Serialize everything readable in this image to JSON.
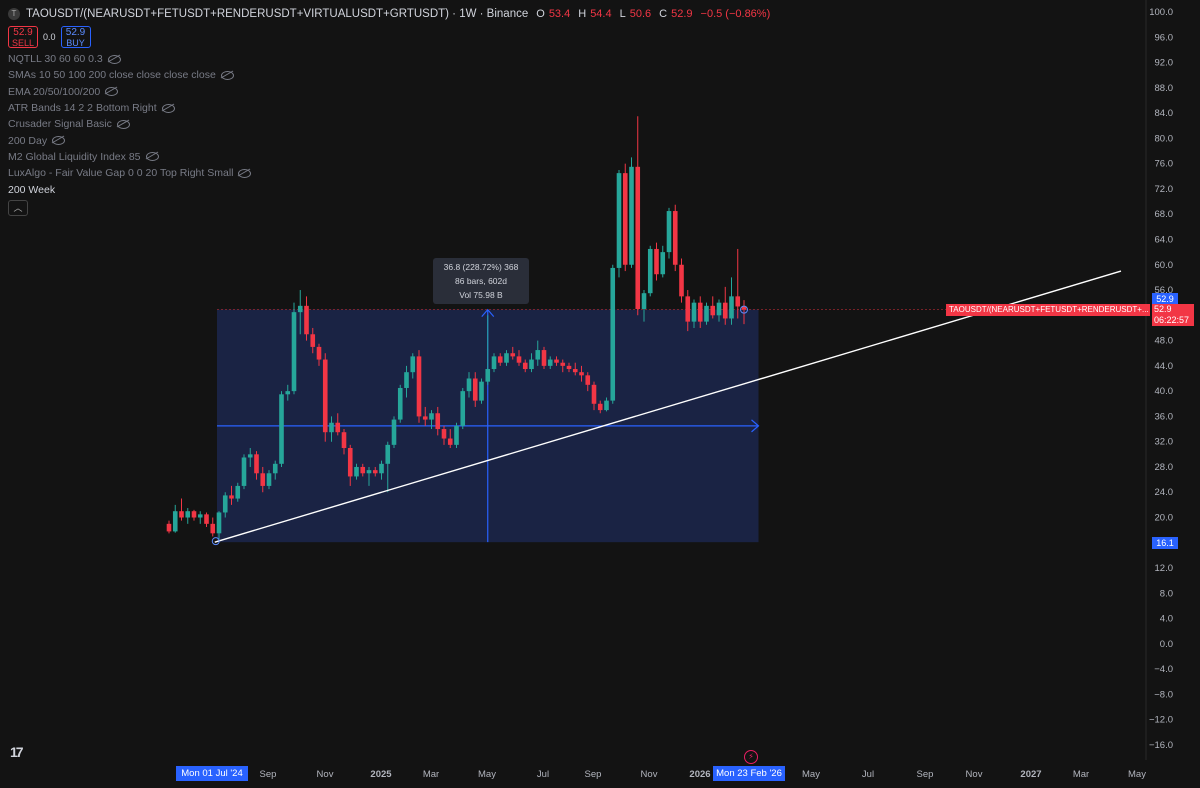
{
  "header": {
    "symbol_icon": "T",
    "title": "TAOUSDT/(NEARUSDT+FETUSDT+RENDERUSDT+VIRTUALUSDT+GRTUSDT) · 1W · Binance",
    "ohlc": [
      {
        "label": "O",
        "value": "53.4"
      },
      {
        "label": "H",
        "value": "54.4"
      },
      {
        "label": "L",
        "value": "50.6"
      },
      {
        "label": "C",
        "value": "52.9"
      }
    ],
    "change": "−0.5 (−0.86%)"
  },
  "trade": {
    "sell_value": "52.9",
    "sell_label": "SELL",
    "spread": "0.0",
    "buy_value": "52.9",
    "buy_label": "BUY"
  },
  "indicators": [
    "NQTLL 30 60 60 0.3",
    "SMAs 10 50 100 200 close close close close",
    "EMA 20/50/100/200",
    "ATR Bands 14 2 2 Bottom Right",
    "Crusader Signal Basic",
    "200 Day",
    "M2 Global Liquidity Index 85",
    "LuxAlgo - Fair Value Gap 0 0 20 Top Right Small",
    "200 Week"
  ],
  "collapse_icon": "chevron-up-icon",
  "logo": "17",
  "measure": {
    "line1": "36.8 (228.72%) 368",
    "line2": "86 bars, 602d",
    "line3": "Vol 75.98 B"
  },
  "price_label": {
    "symbol": "TAOUSDT/(NEARUSDT+FETUSDT+RENDERUSDT+...",
    "last": "52.9",
    "countdown": "06:22:57",
    "top_tag": "52.9",
    "bottom_tag": "16.1"
  },
  "yaxis_labels": [
    "100.0",
    "96.0",
    "92.0",
    "88.0",
    "84.0",
    "80.0",
    "76.0",
    "72.0",
    "68.0",
    "64.0",
    "60.0",
    "56.0",
    "52.0",
    "48.0",
    "44.0",
    "40.0",
    "36.0",
    "32.0",
    "28.0",
    "24.0",
    "20.0",
    "16.0",
    "12.0",
    "8.0",
    "4.0",
    "0.0",
    "−4.0",
    "−8.0",
    "−12.0",
    "−16.0"
  ],
  "xaxis": {
    "ticks": [
      "Sep",
      "Nov",
      "2025",
      "Mar",
      "May",
      "Jul",
      "Sep",
      "Nov",
      "2026",
      "May",
      "Jul",
      "Sep",
      "Nov",
      "2027",
      "Mar",
      "May"
    ],
    "start_tag": "Mon 01 Jul '24",
    "end_tag": "Mon 23 Feb '26"
  },
  "colors": {
    "up": "#26a69a",
    "down": "#f23645",
    "measure_fill": "#1e2a55",
    "measure_line": "#2962ff",
    "trendline": "#ffffff"
  },
  "chart_data": {
    "type": "candlestick",
    "timeframe": "1W",
    "ylim": [
      -16,
      100
    ],
    "candles": [
      {
        "o": 19.0,
        "h": 19.5,
        "l": 17.5,
        "c": 17.8
      },
      {
        "o": 17.8,
        "h": 22.0,
        "l": 17.6,
        "c": 21.0
      },
      {
        "o": 21.0,
        "h": 23.0,
        "l": 19.5,
        "c": 20.0
      },
      {
        "o": 20.0,
        "h": 21.5,
        "l": 19.0,
        "c": 21.0
      },
      {
        "o": 21.0,
        "h": 21.2,
        "l": 19.5,
        "c": 20.0
      },
      {
        "o": 20.0,
        "h": 21.0,
        "l": 19.0,
        "c": 20.5
      },
      {
        "o": 20.5,
        "h": 20.8,
        "l": 18.5,
        "c": 19.0
      },
      {
        "o": 19.0,
        "h": 20.0,
        "l": 17.0,
        "c": 17.5
      },
      {
        "o": 17.5,
        "h": 21.0,
        "l": 16.1,
        "c": 20.8
      },
      {
        "o": 20.8,
        "h": 24.0,
        "l": 20.0,
        "c": 23.5
      },
      {
        "o": 23.5,
        "h": 25.0,
        "l": 22.0,
        "c": 23.0
      },
      {
        "o": 23.0,
        "h": 25.5,
        "l": 22.5,
        "c": 25.0
      },
      {
        "o": 25.0,
        "h": 30.0,
        "l": 24.5,
        "c": 29.5
      },
      {
        "o": 29.5,
        "h": 31.0,
        "l": 28.0,
        "c": 30.0
      },
      {
        "o": 30.0,
        "h": 30.5,
        "l": 26.0,
        "c": 27.0
      },
      {
        "o": 27.0,
        "h": 28.0,
        "l": 24.0,
        "c": 25.0
      },
      {
        "o": 25.0,
        "h": 27.5,
        "l": 24.5,
        "c": 27.0
      },
      {
        "o": 27.0,
        "h": 29.0,
        "l": 26.0,
        "c": 28.5
      },
      {
        "o": 28.5,
        "h": 40.0,
        "l": 28.0,
        "c": 39.5
      },
      {
        "o": 39.5,
        "h": 41.0,
        "l": 38.5,
        "c": 40.0
      },
      {
        "o": 40.0,
        "h": 54.0,
        "l": 39.5,
        "c": 52.5
      },
      {
        "o": 52.5,
        "h": 56.0,
        "l": 49.0,
        "c": 53.5
      },
      {
        "o": 53.5,
        "h": 55.0,
        "l": 48.0,
        "c": 49.0
      },
      {
        "o": 49.0,
        "h": 50.0,
        "l": 46.0,
        "c": 47.0
      },
      {
        "o": 47.0,
        "h": 47.5,
        "l": 44.0,
        "c": 45.0
      },
      {
        "o": 45.0,
        "h": 46.0,
        "l": 32.0,
        "c": 33.5
      },
      {
        "o": 33.5,
        "h": 36.0,
        "l": 32.0,
        "c": 35.0
      },
      {
        "o": 35.0,
        "h": 36.5,
        "l": 33.0,
        "c": 33.5
      },
      {
        "o": 33.5,
        "h": 34.0,
        "l": 30.0,
        "c": 31.0
      },
      {
        "o": 31.0,
        "h": 31.5,
        "l": 25.0,
        "c": 26.5
      },
      {
        "o": 26.5,
        "h": 28.5,
        "l": 26.0,
        "c": 28.0
      },
      {
        "o": 28.0,
        "h": 28.5,
        "l": 26.5,
        "c": 27.0
      },
      {
        "o": 27.0,
        "h": 28.0,
        "l": 25.0,
        "c": 27.5
      },
      {
        "o": 27.5,
        "h": 28.0,
        "l": 26.5,
        "c": 27.0
      },
      {
        "o": 27.0,
        "h": 29.0,
        "l": 26.0,
        "c": 28.5
      },
      {
        "o": 28.5,
        "h": 32.0,
        "l": 24.0,
        "c": 31.5
      },
      {
        "o": 31.5,
        "h": 36.0,
        "l": 31.0,
        "c": 35.5
      },
      {
        "o": 35.5,
        "h": 41.0,
        "l": 35.0,
        "c": 40.5
      },
      {
        "o": 40.5,
        "h": 44.0,
        "l": 39.0,
        "c": 43.0
      },
      {
        "o": 43.0,
        "h": 46.0,
        "l": 42.0,
        "c": 45.5
      },
      {
        "o": 45.5,
        "h": 46.5,
        "l": 35.0,
        "c": 36.0
      },
      {
        "o": 36.0,
        "h": 37.5,
        "l": 34.5,
        "c": 35.5
      },
      {
        "o": 35.5,
        "h": 37.0,
        "l": 34.0,
        "c": 36.5
      },
      {
        "o": 36.5,
        "h": 37.5,
        "l": 33.0,
        "c": 34.0
      },
      {
        "o": 34.0,
        "h": 34.5,
        "l": 31.5,
        "c": 32.5
      },
      {
        "o": 32.5,
        "h": 34.0,
        "l": 31.0,
        "c": 31.5
      },
      {
        "o": 31.5,
        "h": 35.0,
        "l": 31.0,
        "c": 34.5
      },
      {
        "o": 34.5,
        "h": 40.5,
        "l": 34.0,
        "c": 40.0
      },
      {
        "o": 40.0,
        "h": 43.0,
        "l": 39.0,
        "c": 42.0
      },
      {
        "o": 42.0,
        "h": 43.0,
        "l": 37.5,
        "c": 38.5
      },
      {
        "o": 38.5,
        "h": 42.0,
        "l": 38.0,
        "c": 41.5
      },
      {
        "o": 41.5,
        "h": 52.0,
        "l": 41.0,
        "c": 43.5
      },
      {
        "o": 43.5,
        "h": 46.0,
        "l": 43.0,
        "c": 45.5
      },
      {
        "o": 45.5,
        "h": 46.0,
        "l": 44.0,
        "c": 44.5
      },
      {
        "o": 44.5,
        "h": 46.5,
        "l": 44.0,
        "c": 46.0
      },
      {
        "o": 46.0,
        "h": 47.0,
        "l": 45.0,
        "c": 45.5
      },
      {
        "o": 45.5,
        "h": 46.5,
        "l": 44.0,
        "c": 44.5
      },
      {
        "o": 44.5,
        "h": 45.0,
        "l": 43.0,
        "c": 43.5
      },
      {
        "o": 43.5,
        "h": 46.0,
        "l": 43.0,
        "c": 45.0
      },
      {
        "o": 45.0,
        "h": 48.0,
        "l": 44.0,
        "c": 46.5
      },
      {
        "o": 46.5,
        "h": 47.0,
        "l": 43.5,
        "c": 44.0
      },
      {
        "o": 44.0,
        "h": 45.5,
        "l": 43.5,
        "c": 45.0
      },
      {
        "o": 45.0,
        "h": 45.5,
        "l": 44.0,
        "c": 44.5
      },
      {
        "o": 44.5,
        "h": 45.0,
        "l": 43.0,
        "c": 44.0
      },
      {
        "o": 44.0,
        "h": 44.5,
        "l": 43.0,
        "c": 43.5
      },
      {
        "o": 43.5,
        "h": 44.5,
        "l": 42.5,
        "c": 43.0
      },
      {
        "o": 43.0,
        "h": 44.0,
        "l": 41.5,
        "c": 42.5
      },
      {
        "o": 42.5,
        "h": 43.0,
        "l": 40.0,
        "c": 41.0
      },
      {
        "o": 41.0,
        "h": 41.5,
        "l": 37.0,
        "c": 38.0
      },
      {
        "o": 38.0,
        "h": 38.5,
        "l": 36.5,
        "c": 37.0
      },
      {
        "o": 37.0,
        "h": 39.0,
        "l": 36.8,
        "c": 38.5
      },
      {
        "o": 38.5,
        "h": 60.0,
        "l": 38.0,
        "c": 59.5
      },
      {
        "o": 59.5,
        "h": 75.0,
        "l": 58.0,
        "c": 74.5
      },
      {
        "o": 74.5,
        "h": 76.0,
        "l": 59.0,
        "c": 60.0
      },
      {
        "o": 60.0,
        "h": 77.0,
        "l": 59.5,
        "c": 75.5
      },
      {
        "o": 75.5,
        "h": 83.5,
        "l": 52.0,
        "c": 53.0
      },
      {
        "o": 53.0,
        "h": 56.0,
        "l": 51.0,
        "c": 55.5
      },
      {
        "o": 55.5,
        "h": 63.0,
        "l": 55.0,
        "c": 62.5
      },
      {
        "o": 62.5,
        "h": 63.5,
        "l": 57.5,
        "c": 58.5
      },
      {
        "o": 58.5,
        "h": 63.0,
        "l": 58.0,
        "c": 62.0
      },
      {
        "o": 62.0,
        "h": 69.0,
        "l": 61.0,
        "c": 68.5
      },
      {
        "o": 68.5,
        "h": 69.5,
        "l": 59.0,
        "c": 60.0
      },
      {
        "o": 60.0,
        "h": 61.0,
        "l": 54.0,
        "c": 55.0
      },
      {
        "o": 55.0,
        "h": 56.0,
        "l": 49.5,
        "c": 51.0
      },
      {
        "o": 51.0,
        "h": 54.5,
        "l": 50.0,
        "c": 54.0
      },
      {
        "o": 54.0,
        "h": 55.0,
        "l": 50.0,
        "c": 51.0
      },
      {
        "o": 51.0,
        "h": 54.0,
        "l": 50.5,
        "c": 53.5
      },
      {
        "o": 53.5,
        "h": 55.0,
        "l": 51.5,
        "c": 52.0
      },
      {
        "o": 52.0,
        "h": 54.5,
        "l": 51.0,
        "c": 54.0
      },
      {
        "o": 54.0,
        "h": 56.5,
        "l": 50.5,
        "c": 51.5
      },
      {
        "o": 51.5,
        "h": 58.0,
        "l": 50.5,
        "c": 55.0
      },
      {
        "o": 55.0,
        "h": 62.5,
        "l": 51.5,
        "c": 53.4
      },
      {
        "o": 53.4,
        "h": 54.4,
        "l": 50.6,
        "c": 52.9
      }
    ],
    "trendline": {
      "from": {
        "week": 7,
        "price": 16.1
      },
      "to": {
        "week": 152,
        "price": 59.0
      }
    },
    "measure": {
      "start_week": 8,
      "end_week": 94,
      "low": 16.1,
      "high": 52.9
    }
  }
}
